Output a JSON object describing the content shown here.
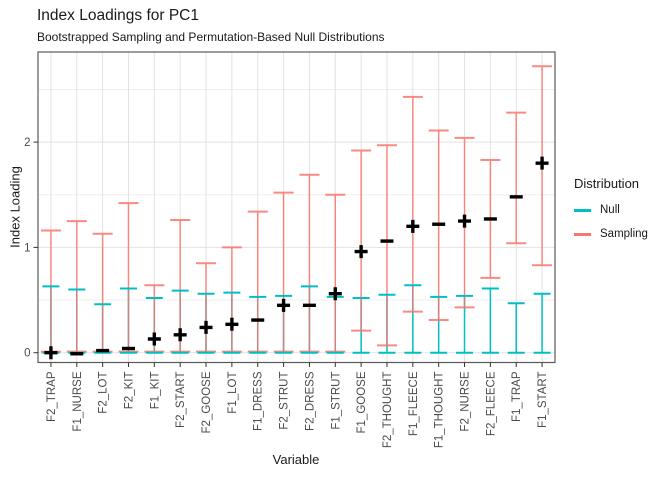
{
  "chart_data": {
    "type": "errorbar",
    "title": "Index Loadings for PC1",
    "subtitle": "Bootstrapped Sampling and Permutation-Based Null Distributions",
    "xlabel": "Variable",
    "ylabel": "Index Loading",
    "ylim": [
      -0.1,
      2.86
    ],
    "yticks": [
      0,
      1,
      2
    ],
    "yticks_minor": [
      0.5,
      1.5,
      2.5
    ],
    "grid": true,
    "legend": {
      "title": "Distribution",
      "position": "right",
      "items": [
        {
          "label": "Null",
          "color": "#00BFC4"
        },
        {
          "label": "Sampling",
          "color": "#F8766D"
        }
      ]
    },
    "categories": [
      "F2_TRAP",
      "F1_NURSE",
      "F2_LOT",
      "F2_KIT",
      "F1_KIT",
      "F2_START",
      "F2_GOOSE",
      "F1_LOT",
      "F1_DRESS",
      "F2_STRUT",
      "F2_DRESS",
      "F1_STRUT",
      "F1_GOOSE",
      "F2_THOUGHT",
      "F1_FLEECE",
      "F1_THOUGHT",
      "F2_NURSE",
      "F2_FLEECE",
      "F1_TRAP",
      "F1_START"
    ],
    "series": [
      {
        "name": "Null",
        "color": "#00BFC4",
        "low": [
          0.0,
          0.0,
          0.0,
          0.0,
          0.0,
          0.0,
          0.0,
          0.0,
          0.0,
          0.0,
          0.0,
          0.0,
          0.0,
          0.0,
          0.0,
          0.0,
          0.0,
          0.0,
          0.0,
          0.0
        ],
        "high": [
          0.63,
          0.6,
          0.46,
          0.61,
          0.52,
          0.59,
          0.56,
          0.57,
          0.53,
          0.54,
          0.63,
          0.53,
          0.52,
          0.55,
          0.64,
          0.53,
          0.54,
          0.61,
          0.47,
          0.56
        ]
      },
      {
        "name": "Sampling",
        "color": "#F8766D",
        "low": [
          0.01,
          0.01,
          0.01,
          0.01,
          0.01,
          0.01,
          0.01,
          0.01,
          0.01,
          0.01,
          0.01,
          0.01,
          0.21,
          0.07,
          0.39,
          0.31,
          0.43,
          0.71,
          1.04,
          0.83
        ],
        "high": [
          1.16,
          1.25,
          1.13,
          1.42,
          0.64,
          1.26,
          0.85,
          1.0,
          1.34,
          1.52,
          1.69,
          1.5,
          1.92,
          1.97,
          2.43,
          2.11,
          2.04,
          1.83,
          2.28,
          2.72
        ]
      }
    ],
    "points": {
      "marker_color": "#000000",
      "values": [
        0.0,
        -0.01,
        0.02,
        0.04,
        0.13,
        0.17,
        0.24,
        0.27,
        0.31,
        0.45,
        0.45,
        0.56,
        0.96,
        1.06,
        1.2,
        1.22,
        1.25,
        1.27,
        1.48,
        1.8
      ],
      "signs": [
        "+",
        "-",
        "-",
        "-",
        "+",
        "+",
        "+",
        "+",
        "-",
        "+",
        "-",
        "+",
        "+",
        "-",
        "+",
        "-",
        "+",
        "-",
        "-",
        "+"
      ]
    }
  }
}
